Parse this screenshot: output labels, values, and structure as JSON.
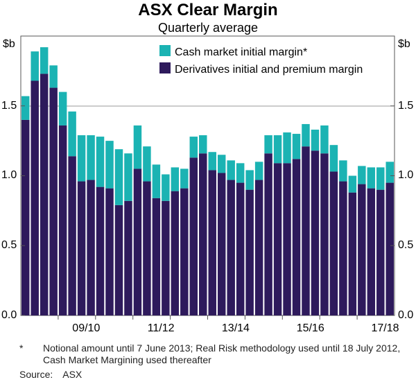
{
  "chart_data": {
    "type": "bar",
    "stacked": true,
    "title": "ASX Clear Margin",
    "subtitle": "Quarterly average",
    "ylabel_left": "$b",
    "ylabel_right": "$b",
    "ylim": [
      0,
      2.0
    ],
    "yticks": [
      "0.0",
      "0.5",
      "1.0",
      "1.5"
    ],
    "yticks_values": [
      0,
      0.5,
      1.0,
      1.5
    ],
    "gridlines": [
      1.5
    ],
    "xticks": [
      "09/10",
      "11/12",
      "13/14",
      "15/16",
      "17/18"
    ],
    "xtick_start_index": [
      3,
      11,
      19,
      27,
      35
    ],
    "legend_position": "top-right",
    "colors": {
      "cash": "#1bb3b3",
      "derivatives": "#2e1a5c"
    },
    "series": [
      {
        "name": "Cash market initial margin*",
        "key": "cash",
        "values": [
          0.17,
          0.21,
          0.19,
          0.16,
          0.24,
          0.32,
          0.33,
          0.32,
          0.36,
          0.34,
          0.4,
          0.34,
          0.31,
          0.25,
          0.24,
          0.19,
          0.17,
          0.14,
          0.15,
          0.13,
          0.13,
          0.13,
          0.14,
          0.14,
          0.14,
          0.13,
          0.13,
          0.2,
          0.22,
          0.18,
          0.16,
          0.15,
          0.2,
          0.19,
          0.15,
          0.12,
          0.13,
          0.15,
          0.16,
          0.15
        ]
      },
      {
        "name": "Derivatives initial and premium margin",
        "key": "derivatives",
        "values": [
          1.4,
          1.68,
          1.73,
          1.63,
          1.36,
          1.14,
          0.96,
          0.97,
          0.92,
          0.91,
          0.79,
          0.82,
          1.05,
          0.96,
          0.84,
          0.82,
          0.89,
          0.91,
          1.13,
          1.16,
          1.04,
          1.02,
          0.97,
          0.95,
          0.9,
          0.97,
          1.16,
          1.09,
          1.09,
          1.12,
          1.21,
          1.18,
          1.16,
          1.03,
          0.96,
          0.88,
          0.94,
          0.91,
          0.9,
          0.95
        ]
      }
    ]
  },
  "footnote": {
    "marker": "*",
    "text": "Notional amount until 7 June 2013; Real Risk methodology used until 18 July 2012, Cash Market Margining used thereafter"
  },
  "source": {
    "label": "Source:",
    "value": "ASX"
  }
}
